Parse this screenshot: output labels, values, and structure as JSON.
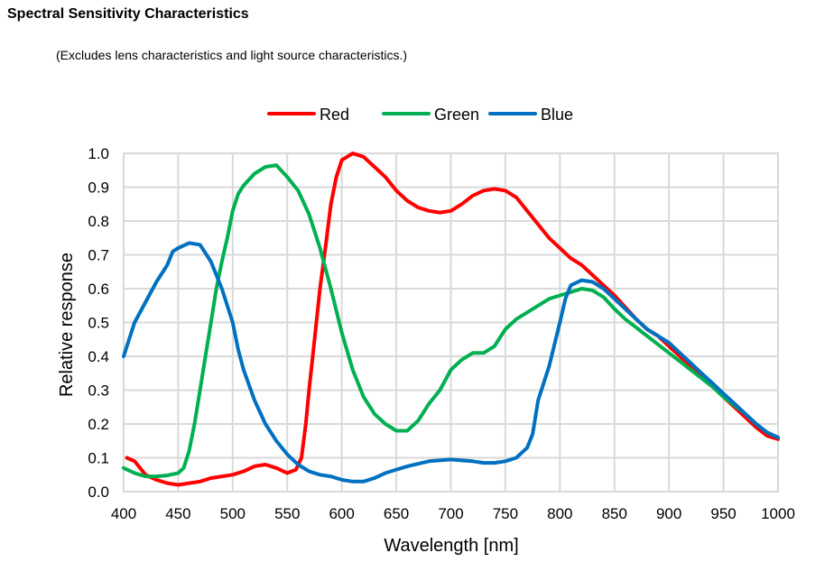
{
  "chart_data": {
    "type": "line",
    "title": "Spectral Sensitivity Characteristics",
    "subtitle": "(Excludes lens characteristics and light source characteristics.)",
    "xlabel": "Wavelength [nm]",
    "ylabel": "Relative response",
    "xlim": [
      400,
      1000
    ],
    "ylim": [
      0,
      1.0
    ],
    "xticks": [
      "400",
      "450",
      "500",
      "550",
      "600",
      "650",
      "700",
      "750",
      "800",
      "850",
      "900",
      "950",
      "1000"
    ],
    "yticks": [
      "0.0",
      "0.1",
      "0.2",
      "0.3",
      "0.4",
      "0.5",
      "0.6",
      "0.7",
      "0.8",
      "0.9",
      "1.0"
    ],
    "grid": true,
    "legend_position": "top-center",
    "series": [
      {
        "name": "Red",
        "color": "#ff0000",
        "x": [
          403,
          410,
          420,
          430,
          440,
          450,
          460,
          470,
          480,
          490,
          500,
          510,
          520,
          530,
          540,
          550,
          558,
          563,
          567,
          570,
          575,
          580,
          585,
          590,
          595,
          600,
          610,
          620,
          630,
          640,
          650,
          660,
          670,
          680,
          690,
          700,
          710,
          720,
          730,
          740,
          750,
          760,
          770,
          780,
          790,
          800,
          810,
          820,
          830,
          840,
          850,
          860,
          870,
          880,
          890,
          900,
          910,
          920,
          930,
          940,
          950,
          960,
          970,
          980,
          990,
          1000
        ],
        "y": [
          0.1,
          0.09,
          0.05,
          0.035,
          0.025,
          0.02,
          0.025,
          0.03,
          0.04,
          0.045,
          0.05,
          0.06,
          0.075,
          0.08,
          0.07,
          0.055,
          0.065,
          0.1,
          0.2,
          0.3,
          0.45,
          0.6,
          0.72,
          0.85,
          0.93,
          0.98,
          1.0,
          0.99,
          0.96,
          0.93,
          0.89,
          0.86,
          0.84,
          0.83,
          0.825,
          0.83,
          0.85,
          0.875,
          0.89,
          0.895,
          0.89,
          0.87,
          0.83,
          0.79,
          0.75,
          0.72,
          0.69,
          0.67,
          0.64,
          0.61,
          0.58,
          0.545,
          0.51,
          0.48,
          0.46,
          0.43,
          0.4,
          0.37,
          0.34,
          0.31,
          0.28,
          0.25,
          0.22,
          0.19,
          0.165,
          0.155
        ]
      },
      {
        "name": "Green",
        "color": "#00b050",
        "x": [
          400,
          410,
          420,
          430,
          440,
          450,
          455,
          460,
          465,
          470,
          475,
          480,
          485,
          490,
          495,
          500,
          505,
          510,
          520,
          530,
          540,
          550,
          560,
          570,
          580,
          590,
          600,
          610,
          620,
          630,
          640,
          650,
          660,
          670,
          680,
          690,
          700,
          710,
          720,
          730,
          740,
          750,
          760,
          770,
          780,
          790,
          800,
          810,
          820,
          830,
          840,
          850,
          860,
          870,
          880,
          890,
          900,
          910,
          920,
          930,
          940,
          950,
          960,
          970,
          980,
          990,
          1000
        ],
        "y": [
          0.07,
          0.055,
          0.045,
          0.045,
          0.048,
          0.055,
          0.07,
          0.12,
          0.2,
          0.3,
          0.4,
          0.5,
          0.6,
          0.68,
          0.75,
          0.83,
          0.88,
          0.905,
          0.94,
          0.96,
          0.965,
          0.93,
          0.89,
          0.82,
          0.72,
          0.6,
          0.47,
          0.36,
          0.28,
          0.23,
          0.2,
          0.18,
          0.18,
          0.21,
          0.26,
          0.3,
          0.36,
          0.39,
          0.41,
          0.41,
          0.43,
          0.48,
          0.51,
          0.53,
          0.55,
          0.57,
          0.58,
          0.59,
          0.6,
          0.595,
          0.575,
          0.54,
          0.51,
          0.485,
          0.46,
          0.435,
          0.41,
          0.385,
          0.36,
          0.335,
          0.31,
          0.28,
          0.255,
          0.23,
          0.2,
          0.175,
          0.16
        ]
      },
      {
        "name": "Blue",
        "color": "#0070c0",
        "x": [
          400,
          405,
          410,
          420,
          430,
          440,
          445,
          450,
          460,
          470,
          480,
          490,
          500,
          505,
          510,
          520,
          530,
          540,
          550,
          560,
          570,
          580,
          590,
          600,
          610,
          620,
          630,
          640,
          650,
          660,
          680,
          700,
          720,
          730,
          740,
          750,
          760,
          770,
          775,
          780,
          790,
          800,
          805,
          810,
          820,
          830,
          840,
          850,
          860,
          870,
          880,
          890,
          900,
          910,
          920,
          930,
          940,
          950,
          960,
          970,
          980,
          990,
          1000
        ],
        "y": [
          0.4,
          0.45,
          0.5,
          0.56,
          0.62,
          0.67,
          0.71,
          0.72,
          0.735,
          0.73,
          0.68,
          0.6,
          0.5,
          0.42,
          0.36,
          0.27,
          0.2,
          0.15,
          0.11,
          0.08,
          0.06,
          0.05,
          0.045,
          0.035,
          0.03,
          0.03,
          0.04,
          0.055,
          0.065,
          0.075,
          0.09,
          0.095,
          0.09,
          0.085,
          0.085,
          0.09,
          0.1,
          0.13,
          0.17,
          0.27,
          0.37,
          0.5,
          0.57,
          0.61,
          0.625,
          0.62,
          0.6,
          0.57,
          0.54,
          0.51,
          0.48,
          0.46,
          0.44,
          0.41,
          0.38,
          0.35,
          0.32,
          0.29,
          0.26,
          0.23,
          0.2,
          0.175,
          0.16
        ]
      }
    ]
  }
}
